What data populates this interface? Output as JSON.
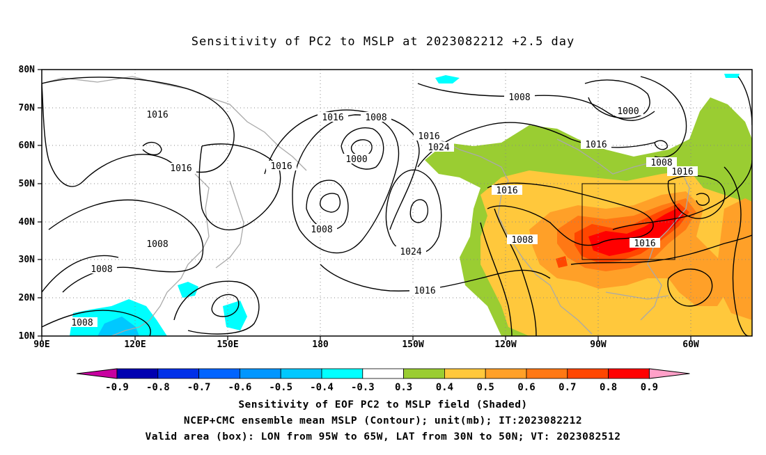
{
  "title": "Sensitivity of PC2 to MSLP at 2023082212 +2.5 day",
  "map": {
    "lat_labels": [
      "80N",
      "70N",
      "60N",
      "50N",
      "40N",
      "30N",
      "20N",
      "10N"
    ],
    "lon_labels": [
      "90E",
      "120E",
      "150E",
      "180",
      "150W",
      "120W",
      "90W",
      "60W"
    ],
    "contours": [
      {
        "text": "1016",
        "id": "c1"
      },
      {
        "text": "1016",
        "id": "c2"
      },
      {
        "text": "1008",
        "id": "c3"
      },
      {
        "text": "1008",
        "id": "c4"
      },
      {
        "text": "1008",
        "id": "c5"
      },
      {
        "text": "1016",
        "id": "c6"
      },
      {
        "text": "1016",
        "id": "c7"
      },
      {
        "text": "1008",
        "id": "c8"
      },
      {
        "text": "1000",
        "id": "c9"
      },
      {
        "text": "1008",
        "id": "c10"
      },
      {
        "text": "1016",
        "id": "c11"
      },
      {
        "text": "1024",
        "id": "c12"
      },
      {
        "text": "1024",
        "id": "c13"
      },
      {
        "text": "1016",
        "id": "c14"
      },
      {
        "text": "1008",
        "id": "c15"
      },
      {
        "text": "1016",
        "id": "c16"
      },
      {
        "text": "1008",
        "id": "c17"
      },
      {
        "text": "1016",
        "id": "c18"
      },
      {
        "text": "1000",
        "id": "c19"
      },
      {
        "text": "1016",
        "id": "c20"
      },
      {
        "text": "1008",
        "id": "c21"
      },
      {
        "text": "1016",
        "id": "c22"
      },
      {
        "text": "1016",
        "id": "c23"
      }
    ],
    "valid_box": {
      "lon_from": "95W",
      "lon_to": "65W",
      "lat_from": "30N",
      "lat_to": "50N"
    }
  },
  "colorbar": {
    "labels": [
      "-0.9",
      "-0.8",
      "-0.7",
      "-0.6",
      "-0.5",
      "-0.4",
      "-0.3",
      "0.3",
      "0.4",
      "0.5",
      "0.6",
      "0.7",
      "0.8",
      "0.9"
    ],
    "colors": [
      "#0000b0",
      "#0030e8",
      "#0064ff",
      "#0096ff",
      "#00c8ff",
      "#00ffff",
      "#ffffff",
      "#9acd32",
      "#ffc83c",
      "#ffa028",
      "#ff7814",
      "#ff4600",
      "#ff0000"
    ],
    "left_arrow_color": "#c800a0",
    "right_arrow_color": "#ffa0c8"
  },
  "captions": {
    "line1": "Sensitivity of EOF PC2 to MSLP field (Shaded)",
    "line2": "NCEP+CMC ensemble mean MSLP (Contour); unit(mb); IT:2023082212",
    "line3": "Valid area (box): LON from 95W to 65W, LAT from 30N to 50N; VT: 2023082512"
  }
}
